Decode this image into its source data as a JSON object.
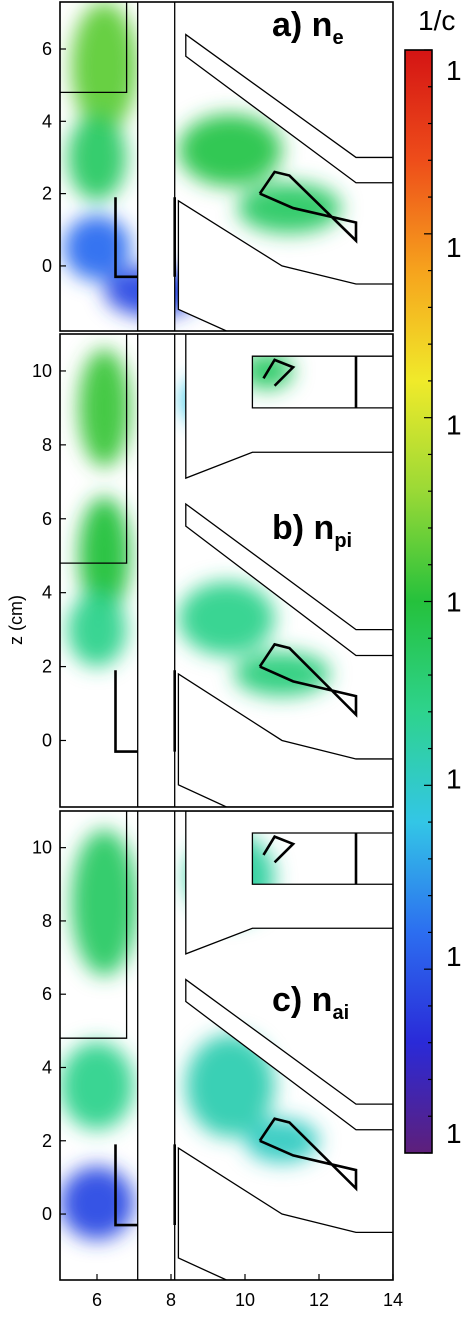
{
  "chart_data": [
    {
      "type": "heatmap",
      "panel": "a",
      "label_main": "a) n",
      "label_sub": "e",
      "xlim": [
        5,
        14
      ],
      "ylim": [
        -1.8,
        7.3
      ],
      "yticks": [
        0,
        2,
        4,
        6
      ],
      "xticks": [],
      "ylabel": "",
      "blobs": [
        {
          "x": 6.2,
          "y": 5.5,
          "rx": 0.9,
          "ry": 1.8,
          "level": 0.55
        },
        {
          "x": 6.0,
          "y": 3.0,
          "rx": 0.8,
          "ry": 1.2,
          "level": 0.45
        },
        {
          "x": 9.6,
          "y": 3.2,
          "rx": 1.4,
          "ry": 1.0,
          "level": 0.48
        },
        {
          "x": 11.2,
          "y": 1.6,
          "rx": 1.4,
          "ry": 0.7,
          "level": 0.45
        },
        {
          "x": 6.0,
          "y": 0.5,
          "rx": 0.9,
          "ry": 0.9,
          "level": 0.2
        },
        {
          "x": 7.5,
          "y": -0.7,
          "rx": 1.3,
          "ry": 0.7,
          "level": 0.15
        }
      ]
    },
    {
      "type": "heatmap",
      "panel": "b",
      "label_main": "b) n",
      "label_sub": "pi",
      "xlim": [
        5,
        14
      ],
      "ylim": [
        -1.8,
        11.0
      ],
      "yticks": [
        0,
        2,
        4,
        6,
        8,
        10
      ],
      "xticks": [],
      "ylabel": "z (cm)",
      "blobs": [
        {
          "x": 6.2,
          "y": 9.0,
          "rx": 0.7,
          "ry": 1.6,
          "level": 0.52
        },
        {
          "x": 6.2,
          "y": 5.0,
          "rx": 0.7,
          "ry": 1.6,
          "level": 0.5
        },
        {
          "x": 6.0,
          "y": 3.0,
          "rx": 0.8,
          "ry": 1.0,
          "level": 0.4
        },
        {
          "x": 9.5,
          "y": 3.3,
          "rx": 1.3,
          "ry": 1.0,
          "level": 0.4
        },
        {
          "x": 11.0,
          "y": 1.8,
          "rx": 1.3,
          "ry": 0.6,
          "level": 0.42
        },
        {
          "x": 10.6,
          "y": 10.0,
          "rx": 0.7,
          "ry": 0.5,
          "level": 0.45
        },
        {
          "x": 9.0,
          "y": 9.2,
          "rx": 0.7,
          "ry": 0.7,
          "level": 0.3
        }
      ]
    },
    {
      "type": "heatmap",
      "panel": "c",
      "label_main": "c) n",
      "label_sub": "ai",
      "xlim": [
        5,
        14
      ],
      "ylim": [
        -1.8,
        11.0
      ],
      "yticks": [
        0,
        2,
        4,
        6,
        8,
        10
      ],
      "xticks": [
        6,
        8,
        10,
        12,
        14
      ],
      "ylabel": "",
      "blobs": [
        {
          "x": 6.2,
          "y": 8.5,
          "rx": 0.9,
          "ry": 2.0,
          "level": 0.45
        },
        {
          "x": 6.0,
          "y": 3.5,
          "rx": 1.0,
          "ry": 1.2,
          "level": 0.4
        },
        {
          "x": 9.6,
          "y": 9.2,
          "rx": 1.2,
          "ry": 1.2,
          "level": 0.38
        },
        {
          "x": 9.6,
          "y": 3.5,
          "rx": 1.2,
          "ry": 1.4,
          "level": 0.36
        },
        {
          "x": 11.0,
          "y": 2.0,
          "rx": 1.0,
          "ry": 0.6,
          "level": 0.34
        },
        {
          "x": 6.0,
          "y": 0.3,
          "rx": 1.0,
          "ry": 1.0,
          "level": 0.15
        }
      ]
    }
  ],
  "colorbar": {
    "title": "1/c",
    "tick_labels": [
      "1",
      "1",
      "1",
      "1",
      "1",
      "1",
      "1"
    ],
    "colormap": [
      "#5e1f7a",
      "#2a2ad8",
      "#2c6ef0",
      "#33c6e6",
      "#2ed38d",
      "#25c13c",
      "#9ad936",
      "#f0ea2a",
      "#f6a31d",
      "#ee4d1a",
      "#d41414"
    ]
  }
}
